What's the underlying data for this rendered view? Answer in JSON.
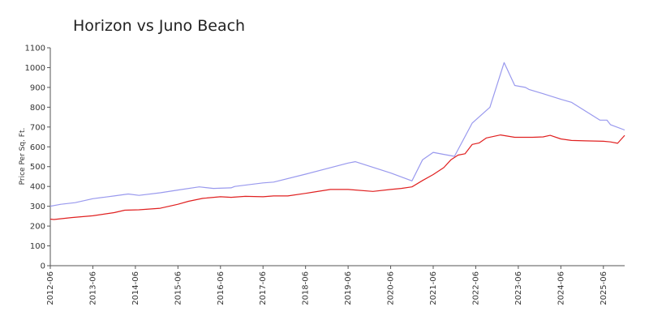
{
  "chart_data": {
    "type": "line",
    "title": "Horizon vs  Juno Beach",
    "ylabel": "Price Per Sq. Ft.",
    "xlabel": "",
    "ylim": [
      0,
      1100
    ],
    "y_ticks": [
      0,
      100,
      200,
      300,
      400,
      500,
      600,
      700,
      800,
      900,
      1000,
      1100
    ],
    "x_tick_labels": [
      "2012-06",
      "2013-06",
      "2014-06",
      "2015-06",
      "2016-06",
      "2017-06",
      "2018-06",
      "2019-06",
      "2020-06",
      "2021-06",
      "2022-06",
      "2023-06",
      "2024-06",
      "2025-06"
    ],
    "x_range": [
      "2012-06",
      "2025-12"
    ],
    "grid": false,
    "series": [
      {
        "color": "#9999ee",
        "points": [
          [
            "2012-06",
            300
          ],
          [
            "2012-09",
            310
          ],
          [
            "2013-01",
            318
          ],
          [
            "2013-06",
            338
          ],
          [
            "2013-12",
            352
          ],
          [
            "2014-04",
            362
          ],
          [
            "2014-07",
            355
          ],
          [
            "2015-01",
            368
          ],
          [
            "2015-06",
            382
          ],
          [
            "2015-12",
            398
          ],
          [
            "2016-04",
            390
          ],
          [
            "2016-09",
            393
          ],
          [
            "2016-10",
            400
          ],
          [
            "2017-06",
            418
          ],
          [
            "2017-09",
            422
          ],
          [
            "2018-06",
            462
          ],
          [
            "2019-06",
            518
          ],
          [
            "2019-08",
            525
          ],
          [
            "2020-06",
            468
          ],
          [
            "2020-12",
            428
          ],
          [
            "2021-03",
            535
          ],
          [
            "2021-06",
            572
          ],
          [
            "2021-09",
            562
          ],
          [
            "2021-12",
            552
          ],
          [
            "2022-05",
            720
          ],
          [
            "2022-10",
            800
          ],
          [
            "2023-02",
            1025
          ],
          [
            "2023-05",
            910
          ],
          [
            "2023-08",
            900
          ],
          [
            "2023-09",
            890
          ],
          [
            "2024-01",
            868
          ],
          [
            "2024-06",
            840
          ],
          [
            "2024-09",
            825
          ],
          [
            "2025-05",
            735
          ],
          [
            "2025-07",
            735
          ],
          [
            "2025-08",
            712
          ],
          [
            "2025-12",
            685
          ]
        ]
      },
      {
        "color": "#e02020",
        "points": [
          [
            "2012-06",
            235
          ],
          [
            "2012-07",
            233
          ],
          [
            "2012-12",
            243
          ],
          [
            "2013-06",
            252
          ],
          [
            "2013-12",
            268
          ],
          [
            "2014-03",
            280
          ],
          [
            "2014-07",
            282
          ],
          [
            "2015-01",
            290
          ],
          [
            "2015-06",
            310
          ],
          [
            "2015-09",
            325
          ],
          [
            "2016-01",
            340
          ],
          [
            "2016-06",
            348
          ],
          [
            "2016-09",
            345
          ],
          [
            "2017-01",
            350
          ],
          [
            "2017-06",
            348
          ],
          [
            "2017-09",
            352
          ],
          [
            "2018-01",
            352
          ],
          [
            "2018-06",
            365
          ],
          [
            "2019-01",
            385
          ],
          [
            "2019-06",
            385
          ],
          [
            "2020-01",
            375
          ],
          [
            "2020-06",
            385
          ],
          [
            "2020-09",
            390
          ],
          [
            "2020-12",
            398
          ],
          [
            "2021-03",
            430
          ],
          [
            "2021-06",
            460
          ],
          [
            "2021-09",
            495
          ],
          [
            "2021-11",
            535
          ],
          [
            "2022-01",
            558
          ],
          [
            "2022-03",
            565
          ],
          [
            "2022-05",
            612
          ],
          [
            "2022-07",
            620
          ],
          [
            "2022-09",
            645
          ],
          [
            "2023-01",
            660
          ],
          [
            "2023-05",
            648
          ],
          [
            "2023-10",
            648
          ],
          [
            "2024-01",
            650
          ],
          [
            "2024-03",
            658
          ],
          [
            "2024-06",
            640
          ],
          [
            "2024-09",
            632
          ],
          [
            "2025-01",
            630
          ],
          [
            "2025-06",
            628
          ],
          [
            "2025-08",
            625
          ],
          [
            "2025-10",
            618
          ],
          [
            "2025-12",
            658
          ]
        ]
      }
    ]
  }
}
